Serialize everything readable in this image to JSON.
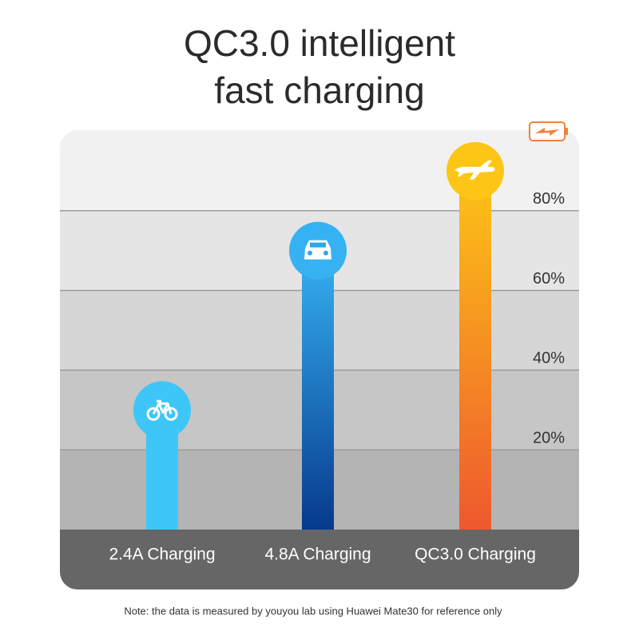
{
  "chart_data": {
    "type": "bar",
    "title": "QC3.0 intelligent",
    "subtitle": "fast charging",
    "categories": [
      "2.4A Charging",
      "4.8A Charging",
      "QC3.0 Charging"
    ],
    "values": [
      30,
      70,
      90
    ],
    "colors": [
      [
        "#3fc6f8",
        "#3fc6f8"
      ],
      [
        "#36b2f2",
        "#06398c"
      ],
      [
        "#fdc516",
        "#ee582e"
      ]
    ],
    "ylim": [
      0,
      100
    ],
    "yticks": [
      {
        "value": 20,
        "label": "20%"
      },
      {
        "value": 40,
        "label": "40%"
      },
      {
        "value": 60,
        "label": "60%"
      },
      {
        "value": 80,
        "label": "80%"
      }
    ],
    "grid": true,
    "note": "Note: the data is measured by youyou lab using Huawei Mate30 for reference only"
  }
}
